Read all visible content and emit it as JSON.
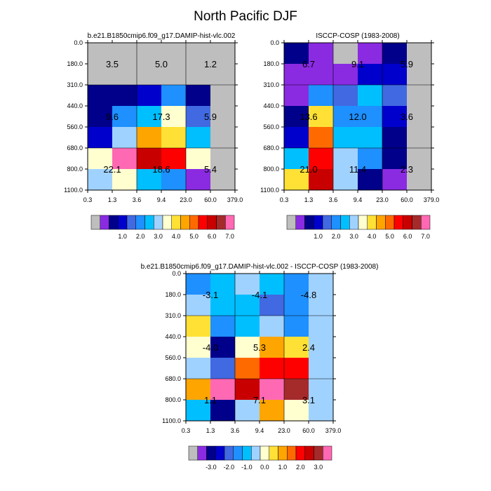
{
  "figure": {
    "title": "North Pacific DJF"
  },
  "chart_data": [
    {
      "type": "heatmap",
      "id": "model",
      "title": "b.e21.B1850cmip6.f09_g17.DAMIP-hist-vlc.002",
      "x_ticks": [
        "0.3",
        "1.3",
        "3.6",
        "9.4",
        "23.0",
        "60.0",
        "379.0"
      ],
      "y_ticks": [
        "0.0",
        "180.0",
        "310.0",
        "440.0",
        "560.0",
        "680.0",
        "800.0",
        "1100.0"
      ],
      "palette": [
        "#bebebe",
        "#8a2be2",
        "#00008b",
        "#0000cd",
        "#4169e1",
        "#1e90ff",
        "#00bfff",
        "#a0d2ff",
        "#ffffd0",
        "#ffe135",
        "#ffa500",
        "#ff6a00",
        "#ff0000",
        "#c80000",
        "#a52a2a",
        "#ff69b4"
      ],
      "colorbar_labels": [
        {
          "label": "1.0",
          "pos": 3.5
        },
        {
          "label": "2.0",
          "pos": 5.5
        },
        {
          "label": "3.0",
          "pos": 7.5
        },
        {
          "label": "4.0",
          "pos": 9.5
        },
        {
          "label": "5.0",
          "pos": 11.5
        },
        {
          "label": "6.0",
          "pos": 13.5
        },
        {
          "label": "7.0",
          "pos": 15.5
        }
      ],
      "cells": [
        [
          0,
          0,
          0,
          0,
          0,
          0
        ],
        [
          0,
          0,
          0,
          0,
          0,
          0
        ],
        [
          2,
          2,
          3,
          5,
          2,
          0
        ],
        [
          2,
          5,
          6,
          8,
          4,
          0
        ],
        [
          3,
          7,
          10,
          9,
          6,
          0
        ],
        [
          8,
          15,
          13,
          12,
          8,
          0
        ],
        [
          7,
          8,
          6,
          5,
          1,
          0
        ]
      ],
      "value_labels": [
        {
          "text": "3.5",
          "col": 0.5,
          "row": 1
        },
        {
          "text": "5.0",
          "col": 2.5,
          "row": 1
        },
        {
          "text": "1.2",
          "col": 4.5,
          "row": 1
        },
        {
          "text": "9.6",
          "col": 0.5,
          "row": 3.5
        },
        {
          "text": "17.3",
          "col": 2.5,
          "row": 3.5
        },
        {
          "text": "5.9",
          "col": 4.5,
          "row": 3.5
        },
        {
          "text": "22.1",
          "col": 0.5,
          "row": 6
        },
        {
          "text": "18.6",
          "col": 2.5,
          "row": 6
        },
        {
          "text": "5.4",
          "col": 4.5,
          "row": 6
        }
      ]
    },
    {
      "type": "heatmap",
      "id": "obs",
      "title": "ISCCP-COSP (1983-2008)",
      "x_ticks": [
        "0.3",
        "1.3",
        "3.6",
        "9.4",
        "23.0",
        "60.0",
        "379.0"
      ],
      "y_ticks": [
        "0.0",
        "180.0",
        "310.0",
        "440.0",
        "560.0",
        "680.0",
        "800.0",
        "1100.0"
      ],
      "palette": [
        "#bebebe",
        "#8a2be2",
        "#00008b",
        "#0000cd",
        "#4169e1",
        "#1e90ff",
        "#00bfff",
        "#a0d2ff",
        "#ffffd0",
        "#ffe135",
        "#ffa500",
        "#ff6a00",
        "#ff0000",
        "#c80000",
        "#a52a2a",
        "#ff69b4"
      ],
      "colorbar_labels": [
        {
          "label": "1.0",
          "pos": 3.5
        },
        {
          "label": "2.0",
          "pos": 5.5
        },
        {
          "label": "3.0",
          "pos": 7.5
        },
        {
          "label": "4.0",
          "pos": 9.5
        },
        {
          "label": "5.0",
          "pos": 11.5
        },
        {
          "label": "6.0",
          "pos": 13.5
        },
        {
          "label": "7.0",
          "pos": 15.5
        }
      ],
      "cells": [
        [
          2,
          1,
          0,
          1,
          2,
          0
        ],
        [
          1,
          1,
          1,
          3,
          3,
          0
        ],
        [
          1,
          5,
          4,
          6,
          4,
          0
        ],
        [
          2,
          9,
          5,
          5,
          3,
          0
        ],
        [
          3,
          11,
          6,
          6,
          2,
          0
        ],
        [
          6,
          12,
          7,
          5,
          2,
          0
        ],
        [
          9,
          13,
          7,
          2,
          1,
          0
        ]
      ],
      "value_labels": [
        {
          "text": "6.7",
          "col": 0.5,
          "row": 1
        },
        {
          "text": "9.1",
          "col": 2.5,
          "row": 1
        },
        {
          "text": "5.9",
          "col": 4.5,
          "row": 1
        },
        {
          "text": "13.6",
          "col": 0.5,
          "row": 3.5
        },
        {
          "text": "12.0",
          "col": 2.5,
          "row": 3.5
        },
        {
          "text": "3.6",
          "col": 4.5,
          "row": 3.5
        },
        {
          "text": "21.0",
          "col": 0.5,
          "row": 6
        },
        {
          "text": "11.4",
          "col": 2.5,
          "row": 6
        },
        {
          "text": "2.3",
          "col": 4.5,
          "row": 6
        }
      ]
    },
    {
      "type": "heatmap",
      "id": "diff",
      "title": "b.e21.B1850cmip6.f09_g17.DAMIP-hist-vlc.002 - ISCCP-COSP (1983-2008)",
      "x_ticks": [
        "0.3",
        "1.3",
        "3.6",
        "9.4",
        "23.0",
        "60.0",
        "379.0"
      ],
      "y_ticks": [
        "0.0",
        "180.0",
        "310.0",
        "440.0",
        "560.0",
        "680.0",
        "800.0",
        "1100.0"
      ],
      "palette": [
        "#bebebe",
        "#8a2be2",
        "#00008b",
        "#0000cd",
        "#4169e1",
        "#1e90ff",
        "#00bfff",
        "#a0d2ff",
        "#ffffd0",
        "#ffe135",
        "#ffa500",
        "#ff6a00",
        "#ff0000",
        "#c80000",
        "#a52a2a",
        "#ff69b4"
      ],
      "colorbar_labels": [
        {
          "label": "-3.0",
          "pos": 2.5
        },
        {
          "label": "-2.0",
          "pos": 4.5
        },
        {
          "label": "-1.0",
          "pos": 6.5
        },
        {
          "label": "0.0",
          "pos": 8.5
        },
        {
          "label": "1.0",
          "pos": 10.5
        },
        {
          "label": "2.0",
          "pos": 12.5
        },
        {
          "label": "3.0",
          "pos": 14.5
        }
      ],
      "cells": [
        [
          5,
          6,
          7,
          6,
          5,
          7
        ],
        [
          7,
          6,
          6,
          4,
          5,
          7
        ],
        [
          9,
          5,
          6,
          7,
          5,
          7
        ],
        [
          8,
          2,
          8,
          10,
          9,
          7
        ],
        [
          7,
          4,
          11,
          12,
          12,
          7
        ],
        [
          10,
          15,
          13,
          15,
          14,
          7
        ],
        [
          6,
          2,
          7,
          10,
          8,
          7
        ]
      ],
      "value_labels": [
        {
          "text": "-3.1",
          "col": 0.5,
          "row": 1
        },
        {
          "text": "-4.1",
          "col": 2.5,
          "row": 1
        },
        {
          "text": "-4.8",
          "col": 4.5,
          "row": 1
        },
        {
          "text": "-4.0",
          "col": 0.5,
          "row": 3.5
        },
        {
          "text": "5.3",
          "col": 2.5,
          "row": 3.5
        },
        {
          "text": "2.4",
          "col": 4.5,
          "row": 3.5
        },
        {
          "text": "1.1",
          "col": 0.5,
          "row": 6
        },
        {
          "text": "7.1",
          "col": 2.5,
          "row": 6
        },
        {
          "text": "3.1",
          "col": 4.5,
          "row": 6
        }
      ]
    }
  ]
}
